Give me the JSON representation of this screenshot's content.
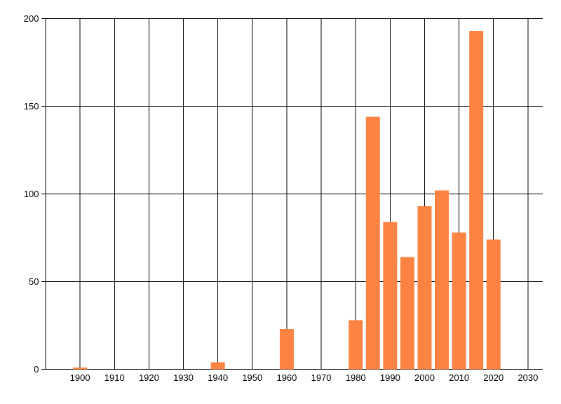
{
  "chart_data": {
    "type": "bar",
    "title": "",
    "xlabel": "",
    "ylabel": "",
    "x": [
      1900,
      1940,
      1960,
      1980,
      1985,
      1990,
      1995,
      2000,
      2005,
      2010,
      2015,
      2020
    ],
    "values": [
      1,
      4,
      23,
      28,
      144,
      84,
      64,
      93,
      102,
      78,
      193,
      74
    ],
    "x_ticks": [
      1900,
      1910,
      1920,
      1930,
      1940,
      1950,
      1960,
      1970,
      1980,
      1990,
      2000,
      2010,
      2020,
      2030
    ],
    "y_ticks": [
      0,
      50,
      100,
      150,
      200
    ],
    "xlim": [
      1890,
      2034.3
    ],
    "ylim": [
      0,
      200
    ],
    "bar_width_years": 4.07,
    "grid": true,
    "legend_position": "none",
    "bar_color": "#fd8342",
    "line_color": "#000000",
    "text_color": "#000000",
    "background_color": "#ffffff"
  }
}
